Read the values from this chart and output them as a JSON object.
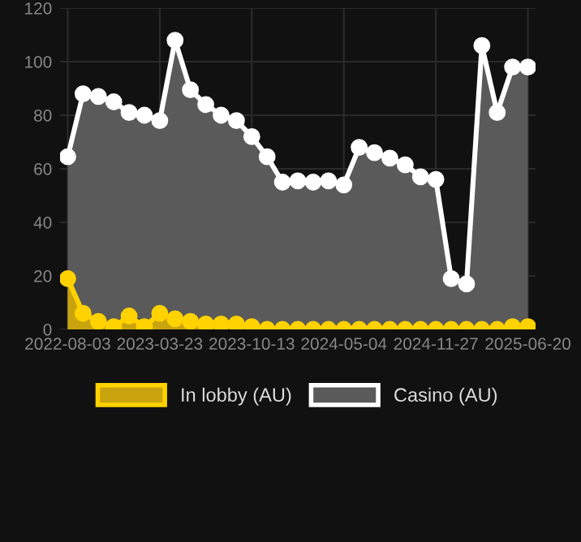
{
  "chart_data": {
    "type": "area",
    "categories": [
      "2022-08-03",
      null,
      null,
      null,
      null,
      null,
      "2023-03-23",
      null,
      null,
      null,
      null,
      null,
      "2023-10-13",
      null,
      null,
      null,
      null,
      null,
      "2024-05-04",
      null,
      null,
      null,
      null,
      null,
      "2024-11-27",
      null,
      null,
      null,
      null,
      null,
      "2025-06-20"
    ],
    "series": [
      {
        "name": "In lobby (AU)",
        "color": "#ffd200",
        "values": [
          19,
          6,
          3,
          1,
          5,
          1,
          6,
          4,
          3,
          2,
          2,
          2,
          1,
          0,
          0,
          0,
          0,
          0,
          0,
          0,
          0,
          0,
          0,
          0,
          0,
          0,
          0,
          0,
          0,
          1,
          1
        ]
      },
      {
        "name": "Casino (AU)",
        "color": "#ffffff",
        "values": [
          64.5,
          88,
          87,
          85,
          81,
          80,
          78,
          108,
          89.5,
          84,
          80,
          78,
          72,
          64.5,
          55,
          55.5,
          55,
          55.5,
          54,
          68,
          66,
          64,
          61.5,
          57,
          56,
          19,
          17,
          106,
          81,
          98,
          98
        ]
      }
    ],
    "ylim": [
      0,
      120
    ],
    "yticks": [
      0,
      20,
      40,
      60,
      80,
      100,
      120
    ],
    "grid": true,
    "legend": "bottom",
    "marker": "circle"
  }
}
